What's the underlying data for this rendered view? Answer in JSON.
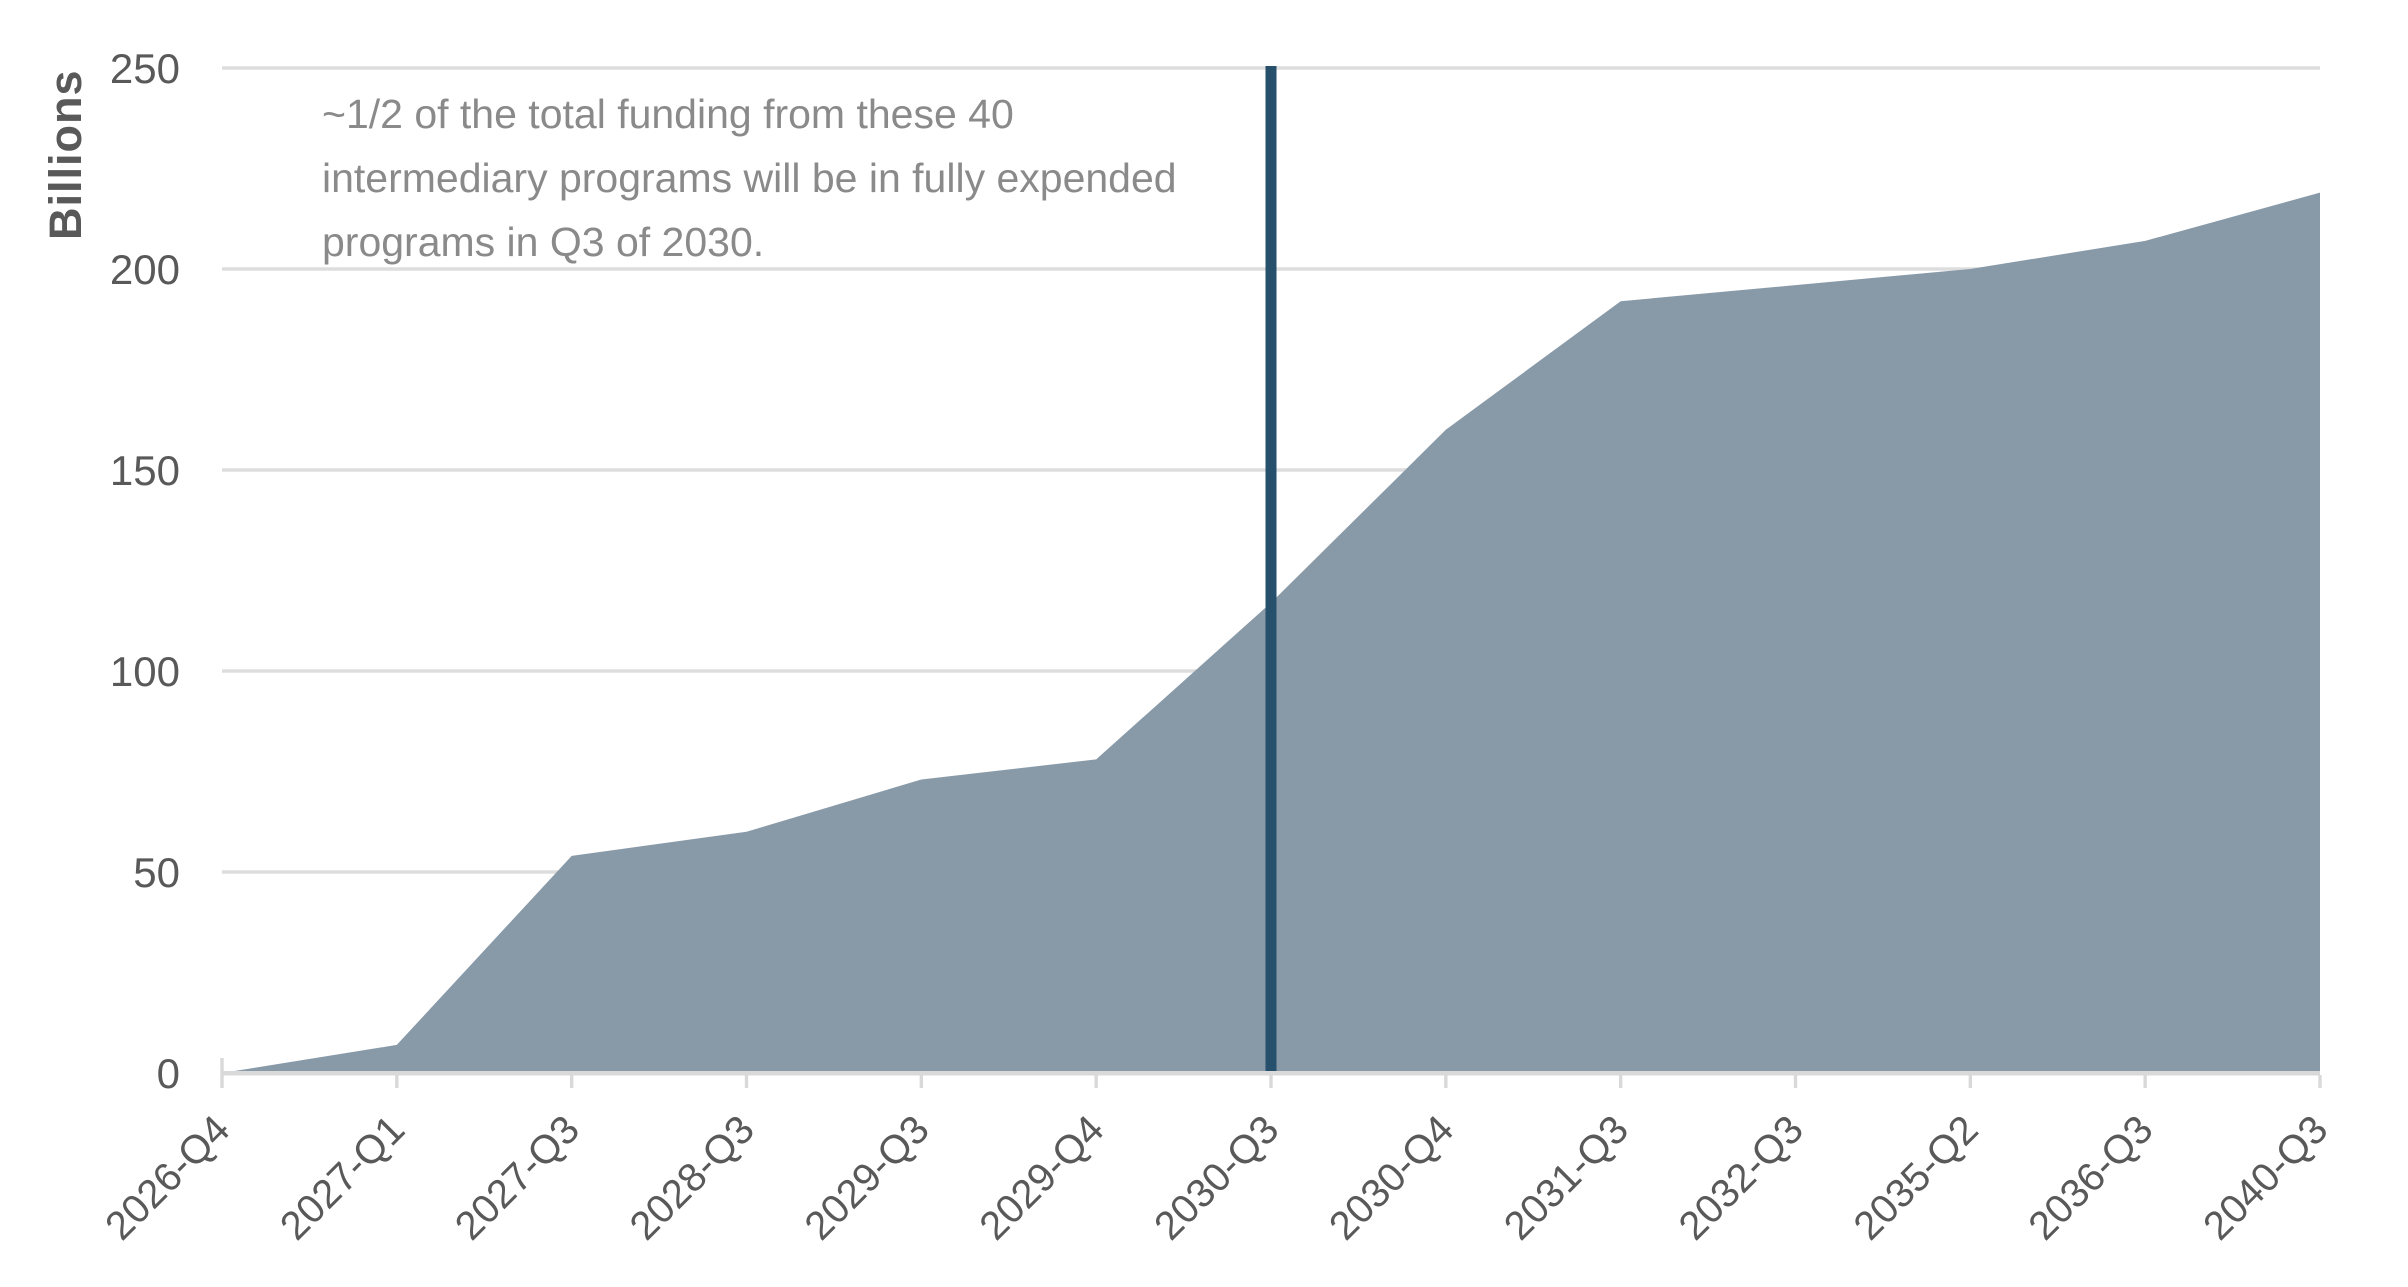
{
  "chart_data": {
    "type": "area",
    "title": "",
    "xlabel": "",
    "ylabel": "Billions",
    "categories": [
      "2026-Q4",
      "2027-Q1",
      "2027-Q3",
      "2028-Q3",
      "2029-Q3",
      "2029-Q4",
      "2030-Q3",
      "2030-Q4",
      "2031-Q3",
      "2032-Q3",
      "2035-Q2",
      "2036-Q3",
      "2040-Q3"
    ],
    "values": [
      0,
      7,
      54,
      60,
      73,
      78,
      117,
      160,
      192,
      196,
      200,
      207,
      219
    ],
    "ylim": [
      0,
      250
    ],
    "y_ticks": [
      0,
      50,
      100,
      150,
      200,
      250
    ],
    "grid": true,
    "legend": "none",
    "vline_category": "2030-Q3",
    "annotation_lines": [
      "~1/2 of the total funding from these 40",
      "intermediary programs will be in fully expended",
      "programs in Q3 of 2030."
    ],
    "colors": {
      "area_fill": "#8899A8",
      "reference_line": "#26506B",
      "gridline": "#DDDDDD",
      "axis_line": "#D9D9D9",
      "tick_label": "#595959",
      "annotation_text": "#8A8A8A",
      "background": "#FFFFFF"
    }
  }
}
